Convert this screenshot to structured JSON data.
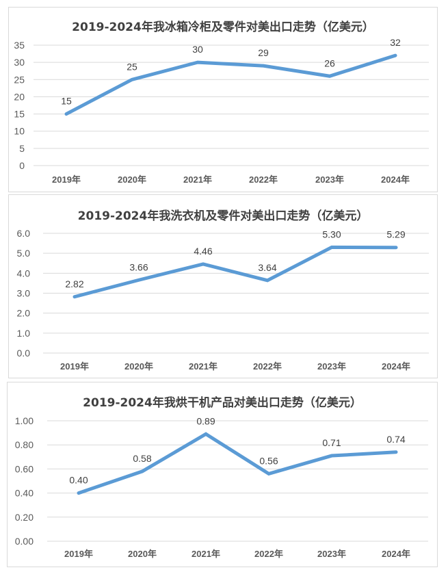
{
  "chart_data": [
    {
      "type": "line",
      "title": "2019-2024年我冰箱冷柜及零件对美出口走势（亿美元）",
      "categories": [
        "2019年",
        "2020年",
        "2021年",
        "2022年",
        "2023年",
        "2024年"
      ],
      "values": [
        15,
        25,
        30,
        29,
        26,
        32
      ],
      "data_labels": [
        "15",
        "25",
        "30",
        "29",
        "26",
        "32"
      ],
      "yticks": [
        "0",
        "5",
        "10",
        "15",
        "20",
        "25",
        "30",
        "35"
      ],
      "ylim": [
        0,
        35
      ],
      "grid": true,
      "color": "#5b9bd5"
    },
    {
      "type": "line",
      "title": "2019-2024年我洗衣机及零件对美出口走势（亿美元）",
      "categories": [
        "2019年",
        "2020年",
        "2021年",
        "2022年",
        "2023年",
        "2024年"
      ],
      "values": [
        2.82,
        3.66,
        4.46,
        3.64,
        5.3,
        5.29
      ],
      "data_labels": [
        "2.82",
        "3.66",
        "4.46",
        "3.64",
        "5.30",
        "5.29"
      ],
      "yticks": [
        "0.0",
        "1.0",
        "2.0",
        "3.0",
        "4.0",
        "5.0",
        "6.0"
      ],
      "ylim": [
        0,
        6
      ],
      "grid": true,
      "color": "#5b9bd5"
    },
    {
      "type": "line",
      "title": "2019-2024年我烘干机产品对美出口走势（亿美元）",
      "categories": [
        "2019年",
        "2020年",
        "2021年",
        "2022年",
        "2023年",
        "2024年"
      ],
      "values": [
        0.4,
        0.58,
        0.89,
        0.56,
        0.71,
        0.74
      ],
      "data_labels": [
        "0.40",
        "0.58",
        "0.89",
        "0.56",
        "0.71",
        "0.74"
      ],
      "yticks": [
        "0.00",
        "0.20",
        "0.40",
        "0.60",
        "0.80",
        "1.00"
      ],
      "ylim": [
        0,
        1
      ],
      "grid": true,
      "color": "#5b9bd5"
    }
  ]
}
